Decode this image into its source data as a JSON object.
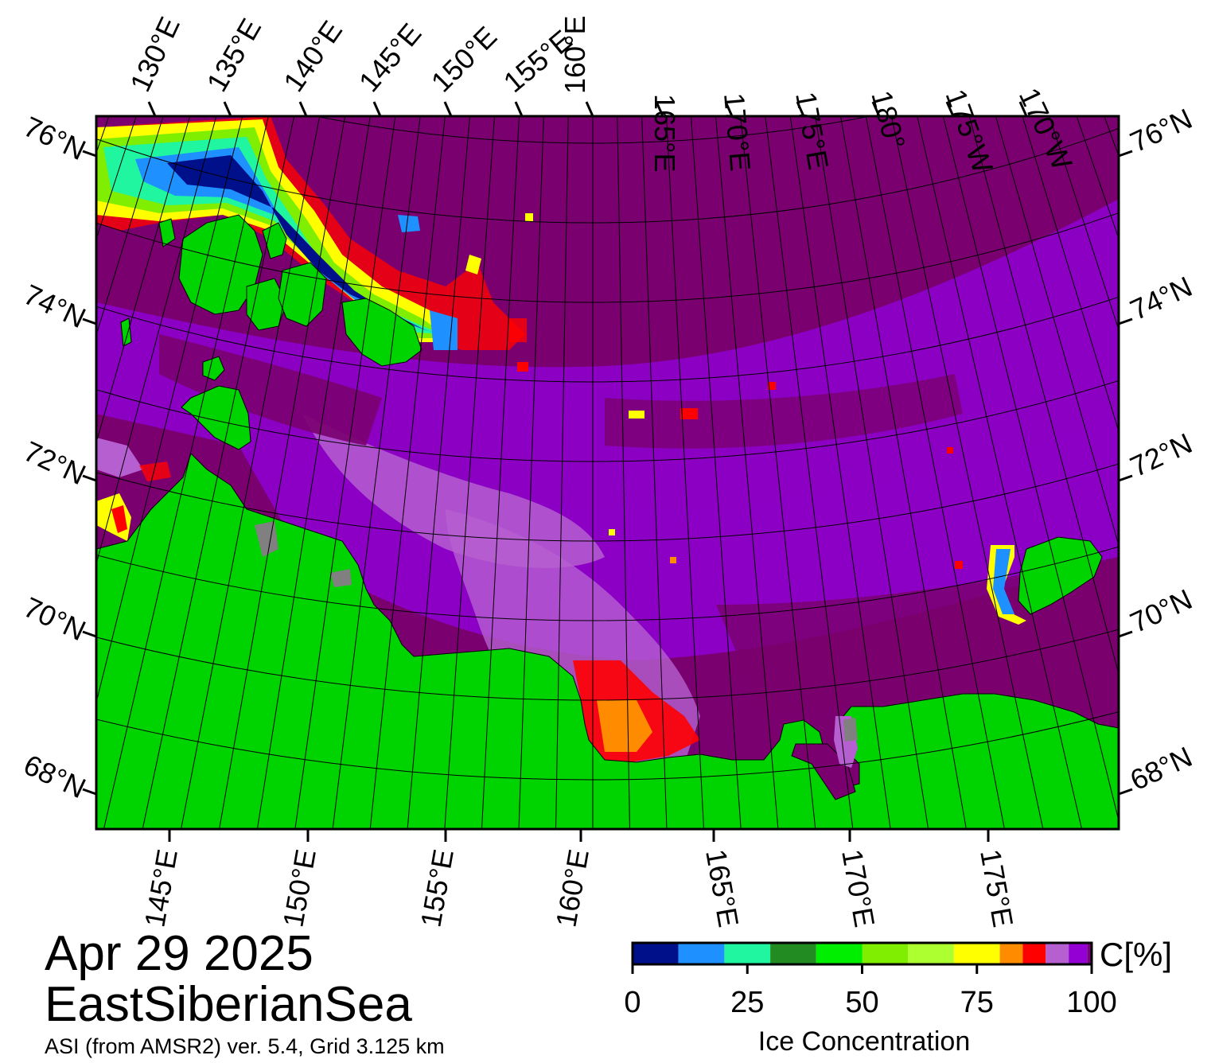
{
  "title": {
    "date": "Apr 29 2025",
    "region": "EastSiberianSea",
    "source": "ASI (from AMSR2) ver. 5.4,  Grid 3.125 km"
  },
  "top_lon_labels": [
    "130°E",
    "135°E",
    "140°E",
    "145°E",
    "150°E",
    "155°E",
    "160°E",
    "165°E",
    "170°E",
    "175°E",
    "180°",
    "175°W",
    "170°W"
  ],
  "bottom_lon_labels": [
    "145°E",
    "150°E",
    "155°E",
    "160°E",
    "165°E",
    "170°E",
    "175°E"
  ],
  "left_lat_labels": [
    "76°N",
    "74°N",
    "72°N",
    "70°N",
    "68°N"
  ],
  "right_lat_labels": [
    "76°N",
    "74°N",
    "72°N",
    "70°N",
    "68°N"
  ],
  "colorbar": {
    "unit": "C[%]",
    "title": "Ice Concentration",
    "ticks": [
      "0",
      "25",
      "50",
      "75",
      "100"
    ],
    "tick_values": [
      0,
      25,
      50,
      75,
      100
    ],
    "range": [
      0,
      100
    ],
    "bins": [
      {
        "from": 0,
        "to": 10,
        "color": "#000f8a"
      },
      {
        "from": 10,
        "to": 20,
        "color": "#1e90ff"
      },
      {
        "from": 20,
        "to": 30,
        "color": "#20f5a0"
      },
      {
        "from": 30,
        "to": 40,
        "color": "#228b22"
      },
      {
        "from": 40,
        "to": 50,
        "color": "#00ee00"
      },
      {
        "from": 50,
        "to": 60,
        "color": "#7fee00"
      },
      {
        "from": 60,
        "to": 70,
        "color": "#adff2f"
      },
      {
        "from": 70,
        "to": 80,
        "color": "#ffff00"
      },
      {
        "from": 80,
        "to": 85,
        "color": "#ff8c00"
      },
      {
        "from": 85,
        "to": 90,
        "color": "#ff0000"
      },
      {
        "from": 90,
        "to": 95,
        "color": "#b55fd0"
      },
      {
        "from": 95,
        "to": 99,
        "color": "#9400d3"
      },
      {
        "from": 99,
        "to": 100,
        "color": "#7a0080"
      }
    ]
  },
  "colors": {
    "land": "#00d400",
    "land_mask": "#808080",
    "ice_full": "#7a006f",
    "ice_high": "#9400d3",
    "ice_medium": "#b55fd0",
    "graticule": "#000000"
  }
}
